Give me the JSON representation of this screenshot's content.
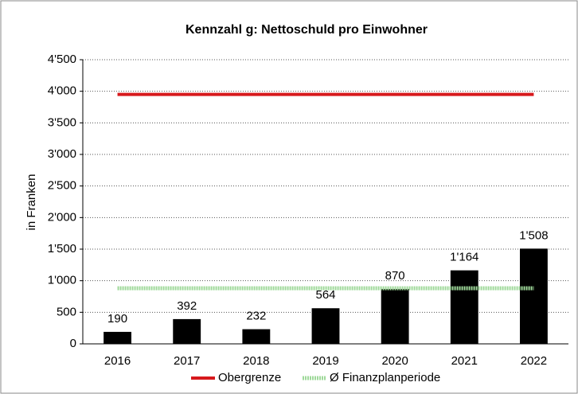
{
  "chart_data": {
    "type": "bar",
    "title": "Kennzahl g: Nettoschuld pro Einwohner",
    "y_label": "in Franken",
    "categories": [
      "2016",
      "2017",
      "2018",
      "2019",
      "2020",
      "2021",
      "2022"
    ],
    "values": [
      190,
      392,
      232,
      564,
      870,
      1164,
      1508
    ],
    "value_labels": [
      "190",
      "392",
      "232",
      "564",
      "870",
      "1'164",
      "1'508"
    ],
    "color": "#000000",
    "series": [
      {
        "name": "Obergrenze",
        "color": "#d7191c",
        "values": [
          3950,
          3950,
          3950,
          3950,
          3950,
          3950,
          3950
        ]
      },
      {
        "name": "Ø Finanzplanperiode",
        "color": "#9fd99a",
        "values": [
          880,
          880,
          880,
          880,
          880,
          880,
          880
        ]
      }
    ],
    "ylim": [
      0,
      4500
    ],
    "yticks": [
      0,
      500,
      {
        "value": 1000,
        "label": "1'000"
      },
      {
        "value": 1500,
        "label": "1'500"
      },
      {
        "value": 2000,
        "label": "2'000"
      },
      {
        "value": 2500,
        "label": "2'500"
      },
      {
        "value": 3000,
        "label": "3'000"
      },
      {
        "value": 3500,
        "label": "3'500"
      },
      {
        "value": 4000,
        "label": "4'000"
      },
      {
        "value": 4500,
        "label": "4'500"
      }
    ],
    "grid": true
  }
}
